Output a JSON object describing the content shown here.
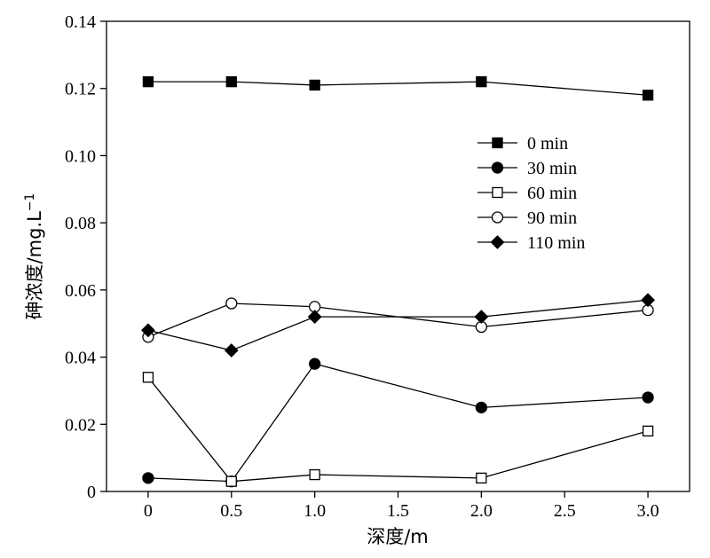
{
  "chart_data": {
    "type": "line",
    "title": "",
    "xlabel": "深度/m",
    "ylabel": "砷浓度/mg.L",
    "ylabel_superscript": "−1",
    "xlim": [
      -0.25,
      3.25
    ],
    "ylim": [
      0,
      0.14
    ],
    "xticks": [
      0,
      0.5,
      1.0,
      1.5,
      2.0,
      2.5,
      3.0
    ],
    "xtick_labels": [
      "0",
      "0.5",
      "1.0",
      "1.5",
      "2.0",
      "2.5",
      "3.0"
    ],
    "yticks": [
      0,
      0.02,
      0.04,
      0.06,
      0.08,
      0.1,
      0.12,
      0.14
    ],
    "ytick_labels": [
      "0",
      "0.02",
      "0.04",
      "0.06",
      "0.08",
      "0.10",
      "0.12",
      "0.14"
    ],
    "grid": false,
    "legend_position": "center-right",
    "x": [
      0,
      0.5,
      1.0,
      2.0,
      3.0
    ],
    "series": [
      {
        "name": "0 min",
        "marker": "square-filled",
        "values": [
          0.122,
          0.122,
          0.121,
          0.122,
          0.118
        ]
      },
      {
        "name": "30 min",
        "marker": "circle-filled",
        "values": [
          0.004,
          0.003,
          0.038,
          0.025,
          0.028
        ]
      },
      {
        "name": "60 min",
        "marker": "square-open",
        "values": [
          0.034,
          0.003,
          0.005,
          0.004,
          0.018
        ]
      },
      {
        "name": "90 min",
        "marker": "circle-open",
        "values": [
          0.046,
          0.056,
          0.055,
          0.049,
          0.054
        ]
      },
      {
        "name": "110 min",
        "marker": "diamond-filled",
        "values": [
          0.048,
          0.042,
          0.052,
          0.052,
          0.057
        ]
      }
    ]
  }
}
